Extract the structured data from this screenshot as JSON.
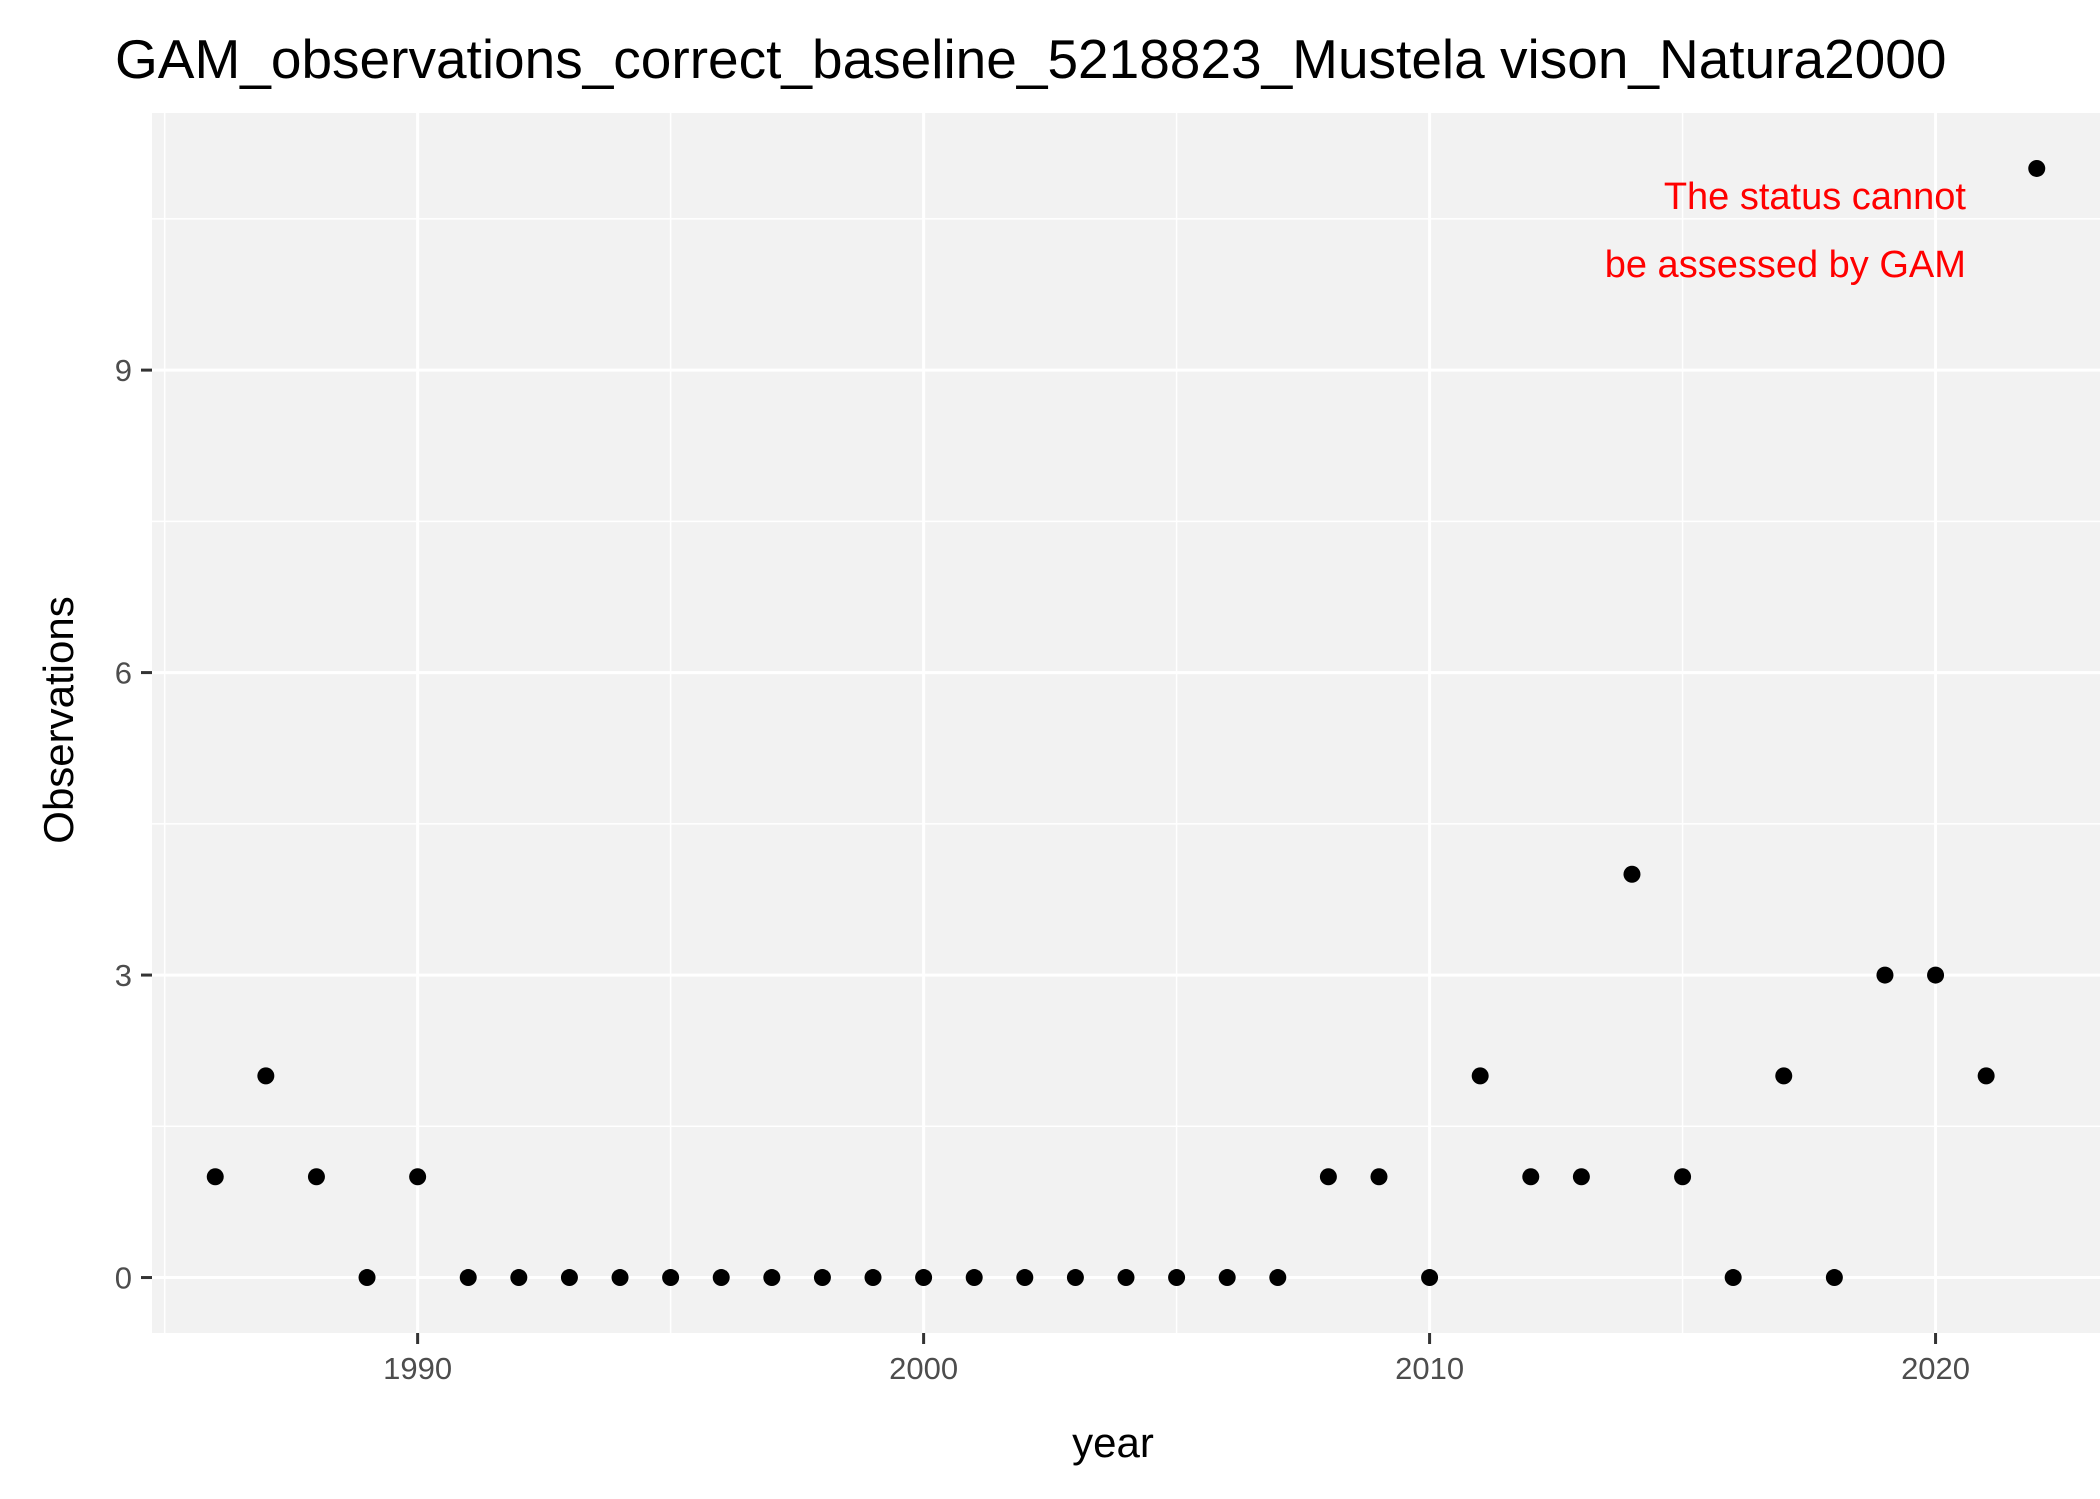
{
  "chart_data": {
    "type": "scatter",
    "title": "GAM_observations_correct_baseline_5218823_Mustela vison_Natura2000",
    "xlabel": "year",
    "ylabel": "Observations",
    "xlim": [
      1984.75,
      2023.25
    ],
    "ylim": [
      -0.55,
      11.55
    ],
    "x_ticks": [
      1990,
      2000,
      2010,
      2020
    ],
    "y_ticks": [
      0,
      3,
      6,
      9
    ],
    "grid": true,
    "legend": "none",
    "point_color": "#000000",
    "panel_color": "#f2f2f2",
    "x": [
      1986,
      1987,
      1988,
      1989,
      1990,
      1991,
      1992,
      1993,
      1994,
      1995,
      1996,
      1997,
      1998,
      1999,
      2000,
      2001,
      2002,
      2003,
      2004,
      2005,
      2006,
      2007,
      2008,
      2009,
      2010,
      2011,
      2012,
      2013,
      2014,
      2015,
      2016,
      2017,
      2018,
      2019,
      2020,
      2021,
      2022
    ],
    "y": [
      1,
      2,
      1,
      0,
      1,
      0,
      0,
      0,
      0,
      0,
      0,
      0,
      0,
      0,
      0,
      0,
      0,
      0,
      0,
      0,
      0,
      0,
      1,
      1,
      0,
      2,
      1,
      1,
      4,
      1,
      0,
      2,
      0,
      3,
      3,
      2,
      11
    ],
    "annotation": {
      "lines": [
        "The status cannot",
        "be assessed by GAM"
      ],
      "color": "#ff0000"
    }
  }
}
